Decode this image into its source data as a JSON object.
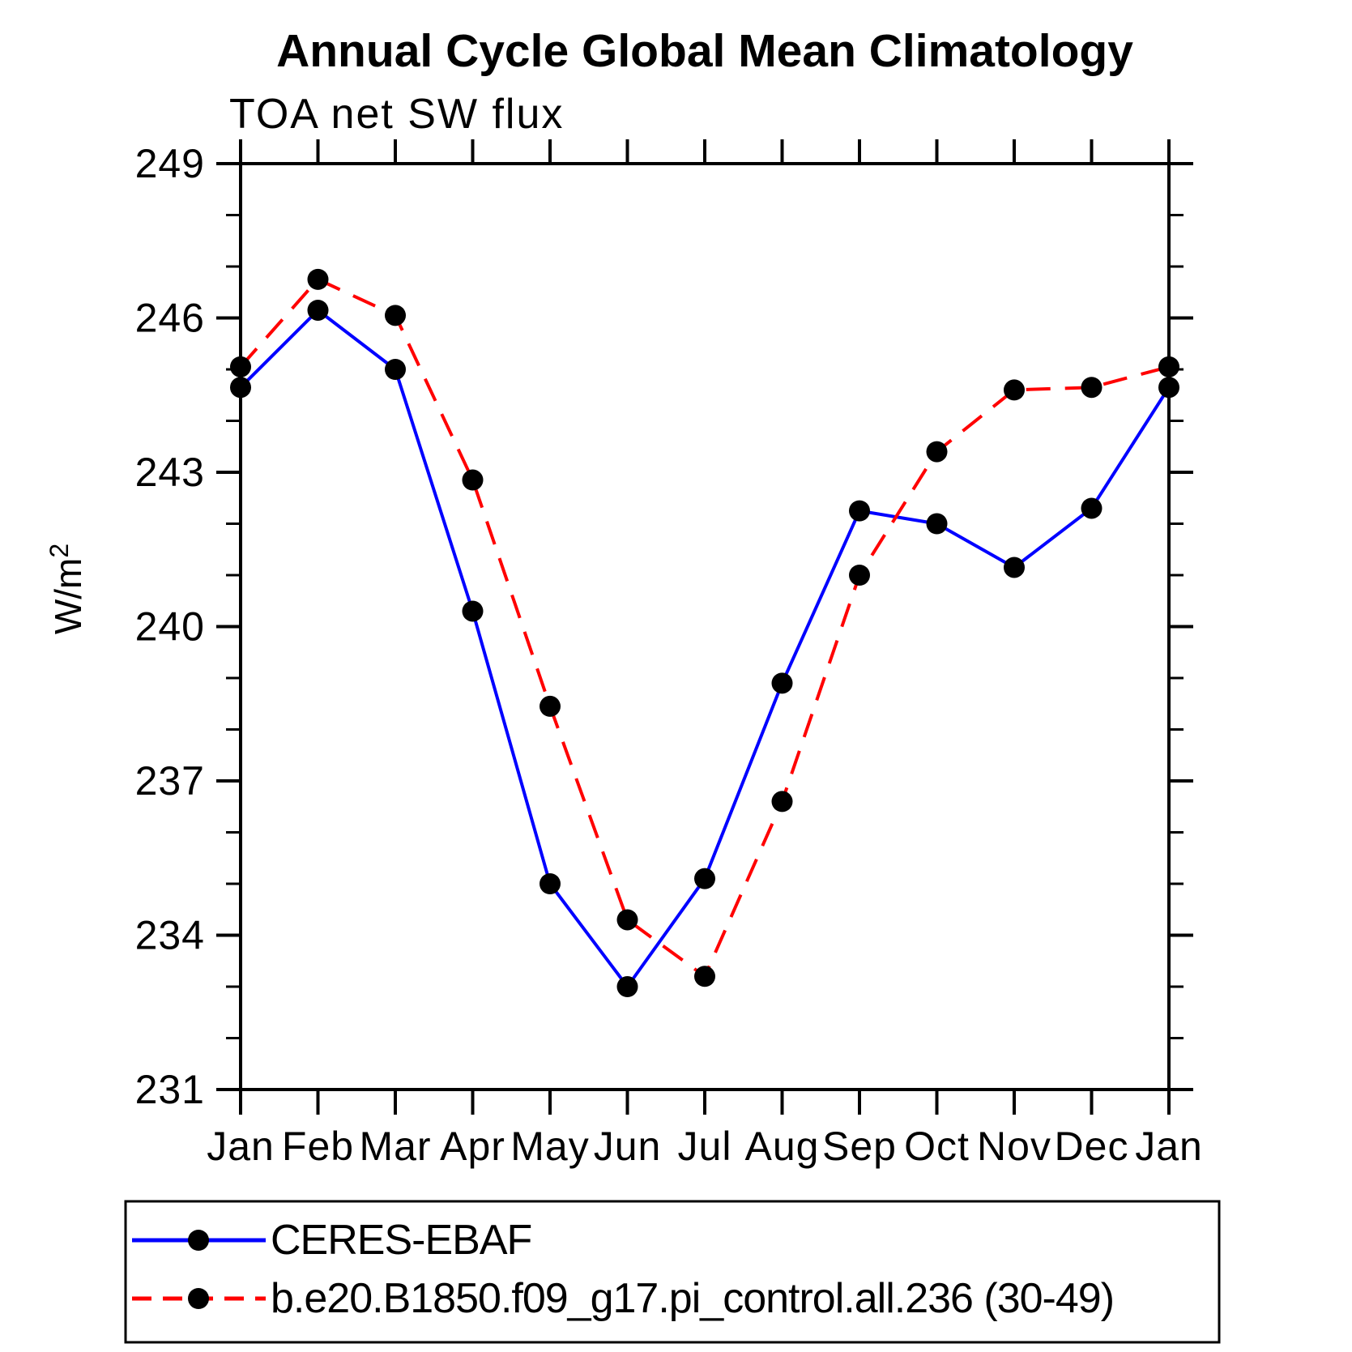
{
  "title": "Annual Cycle Global Mean Climatology",
  "chart_data": {
    "type": "line",
    "title": "Annual Cycle Global Mean Climatology",
    "subtitle": "TOA net SW flux",
    "ylabel_base": "W/m",
    "ylabel_exponent": "2",
    "categories": [
      "Jan",
      "Feb",
      "Mar",
      "Apr",
      "May",
      "Jun",
      "Jul",
      "Aug",
      "Sep",
      "Oct",
      "Nov",
      "Dec",
      "Jan"
    ],
    "ylim": [
      231,
      249
    ],
    "y_major_ticks": [
      231,
      234,
      237,
      240,
      243,
      246,
      249
    ],
    "y_minor_step": 1,
    "x_axis_note": "13 monthly points, Jan repeated at end",
    "grid": false,
    "legend_position": "bottom-left-box",
    "frame_color": "#000000",
    "marker_color": "#000000",
    "series": [
      {
        "name": "CERES-EBAF",
        "color": "#0000ff",
        "line_style": "solid",
        "marker": "filled-circle",
        "values": [
          244.65,
          246.15,
          245.0,
          240.3,
          235.0,
          233.0,
          235.1,
          238.9,
          242.25,
          242.0,
          241.15,
          242.3,
          244.65
        ]
      },
      {
        "name": "b.e20.B1850.f09_g17.pi_control.all.236 (30-49)",
        "color": "#ff0000",
        "line_style": "dashed",
        "marker": "filled-circle",
        "values": [
          245.05,
          246.75,
          246.05,
          242.85,
          238.45,
          234.3,
          233.2,
          236.6,
          241.0,
          243.4,
          244.6,
          244.65,
          245.05
        ]
      }
    ]
  }
}
